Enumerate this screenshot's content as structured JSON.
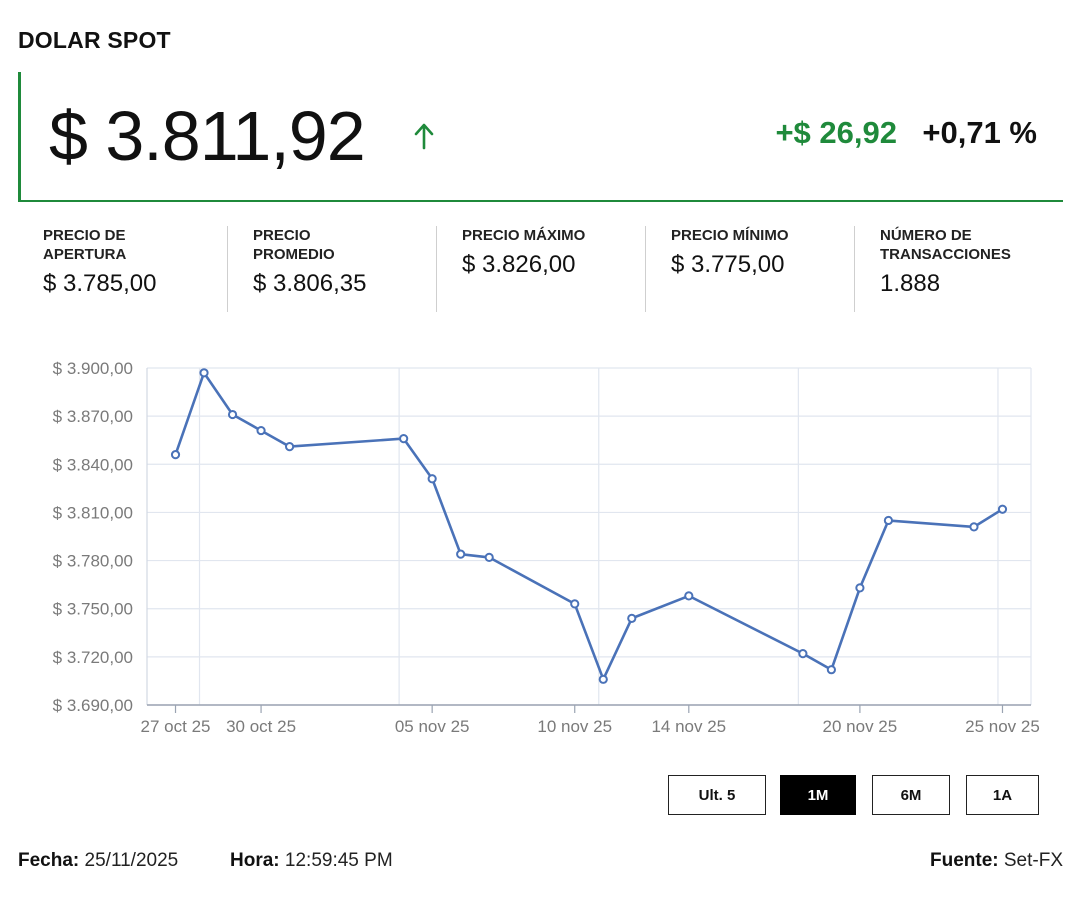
{
  "title": "DOLAR SPOT",
  "price": "$ 3.811,92",
  "change_abs": "+$ 26,92",
  "change_pct": "+0,71 %",
  "colors": {
    "positive": "#1f8a3b",
    "line": "#4a72b8",
    "grid": "#e1e6ef"
  },
  "icons": {
    "trend": "arrow-up-icon"
  },
  "stats": [
    {
      "label": "PRECIO DE APERTURA",
      "value": "$ 3.785,00"
    },
    {
      "label": "PRECIO PROMEDIO",
      "value": "$ 3.806,35"
    },
    {
      "label": "PRECIO MÁXIMO",
      "value": "$ 3.826,00"
    },
    {
      "label": "PRECIO MÍNIMO",
      "value": "$ 3.775,00"
    },
    {
      "label": "NÚMERO DE TRANSACCIONES",
      "value": "1.888"
    }
  ],
  "chart_data": {
    "type": "line",
    "ylim": [
      3690,
      3900
    ],
    "y_ticks": [
      3690,
      3720,
      3750,
      3780,
      3810,
      3840,
      3870,
      3900
    ],
    "y_tick_labels": [
      "$ 3.690,00",
      "$ 3.720,00",
      "$ 3.750,00",
      "$ 3.780,00",
      "$ 3.810,00",
      "$ 3.840,00",
      "$ 3.870,00",
      "$ 3.900,00"
    ],
    "x_tick_labels": [
      "27 oct 25",
      "30 oct 25",
      "05 nov 25",
      "10 nov 25",
      "14 nov 25",
      "20 nov 25",
      "25 nov 25"
    ],
    "x_tick_dates": [
      "2025-10-27",
      "2025-10-30",
      "2025-11-05",
      "2025-11-10",
      "2025-11-14",
      "2025-11-20",
      "2025-11-25"
    ],
    "grid": true,
    "series": [
      {
        "x": [
          "2025-10-27",
          "2025-10-28",
          "2025-10-29",
          "2025-10-30",
          "2025-10-31",
          "2025-11-04",
          "2025-11-05",
          "2025-11-06",
          "2025-11-07",
          "2025-11-10",
          "2025-11-11",
          "2025-11-12",
          "2025-11-14",
          "2025-11-18",
          "2025-11-19",
          "2025-11-20",
          "2025-11-21",
          "2025-11-24",
          "2025-11-25"
        ],
        "values": [
          3846,
          3897,
          3871,
          3861,
          3851,
          3856,
          3831,
          3784,
          3782,
          3753,
          3706,
          3744,
          3758,
          3722,
          3712,
          3763,
          3805,
          3801,
          3812
        ]
      }
    ]
  },
  "range_buttons": [
    {
      "label": "Ult. 5",
      "active": false
    },
    {
      "label": "1M",
      "active": true
    },
    {
      "label": "6M",
      "active": false
    },
    {
      "label": "1A",
      "active": false
    }
  ],
  "footer": {
    "fecha_label": "Fecha:",
    "fecha_value": "25/11/2025",
    "hora_label": "Hora:",
    "hora_value": "12:59:45 PM",
    "fuente_label": "Fuente:",
    "fuente_value": "Set-FX"
  }
}
